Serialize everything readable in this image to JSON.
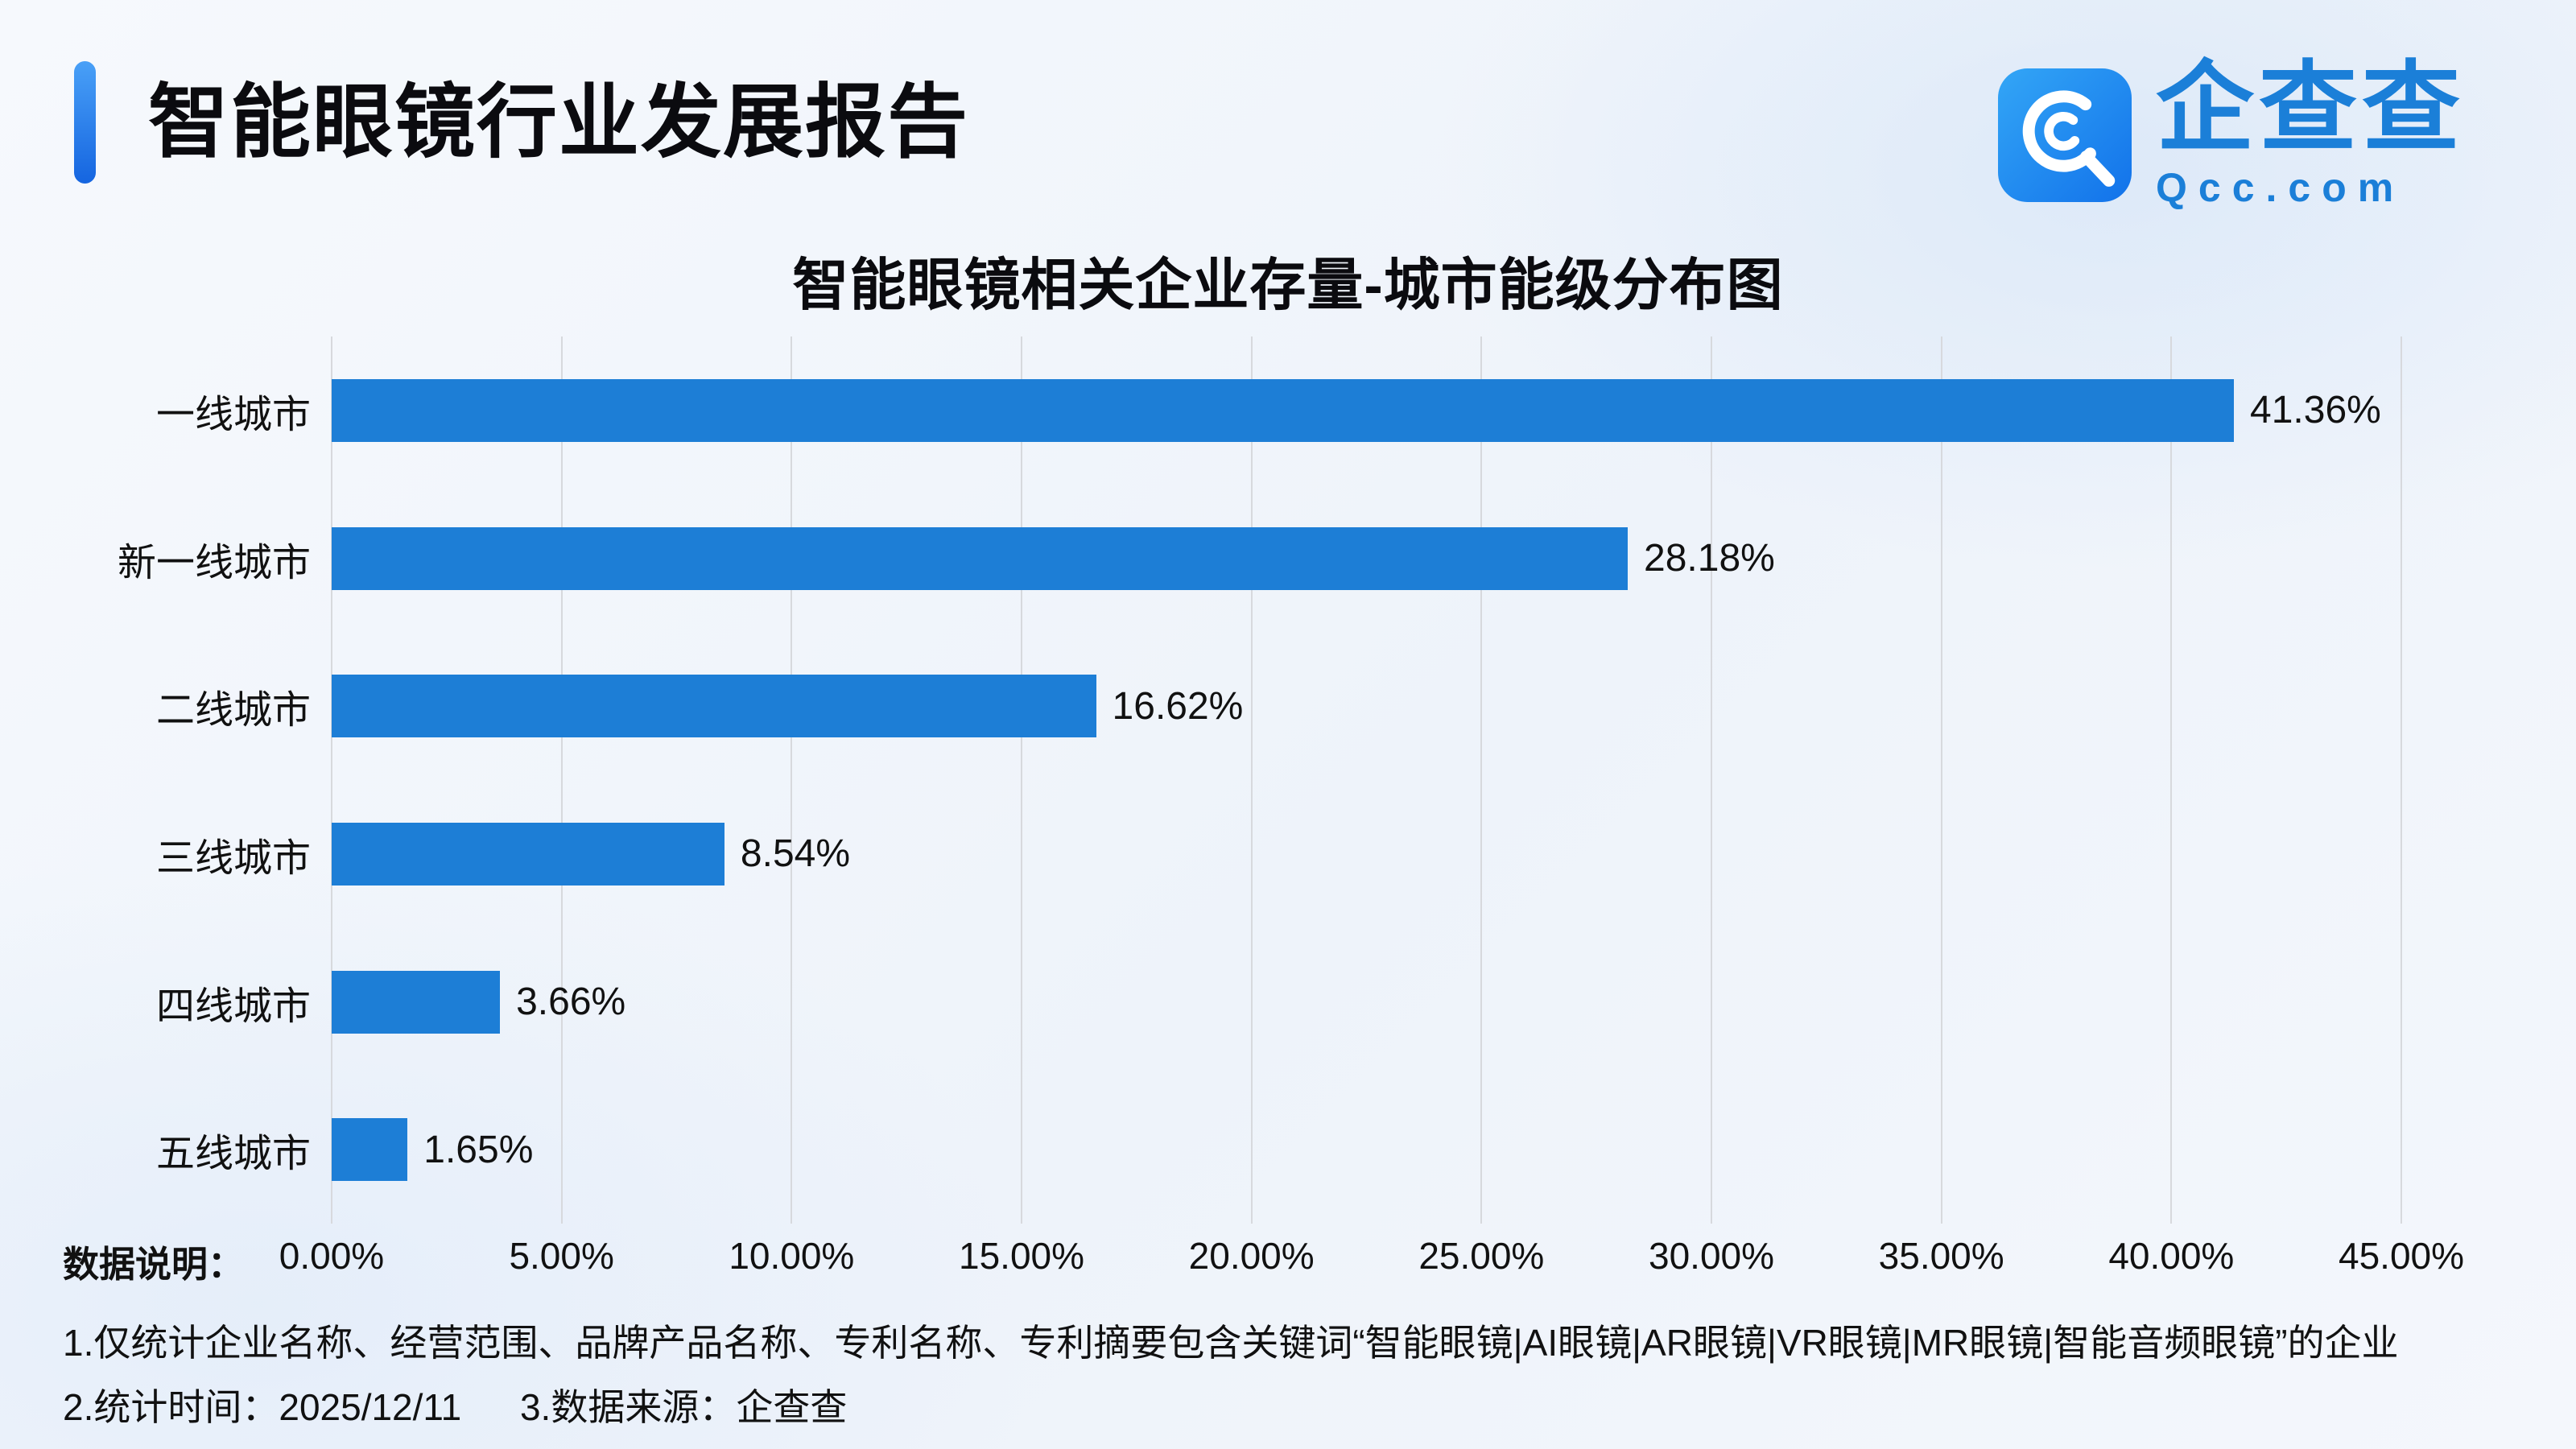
{
  "header": {
    "report_title": "智能眼镜行业发展报告",
    "logo": {
      "brand_name": "企查查",
      "brand_domain": "Qcc.com"
    }
  },
  "chart_data": {
    "type": "bar",
    "orientation": "horizontal",
    "title": "智能眼镜相关企业存量-城市能级分布图",
    "categories": [
      "一线城市",
      "新一线城市",
      "二线城市",
      "三线城市",
      "四线城市",
      "五线城市"
    ],
    "values": [
      41.36,
      28.18,
      16.62,
      8.54,
      3.66,
      1.65
    ],
    "value_labels": [
      "41.36%",
      "28.18%",
      "16.62%",
      "8.54%",
      "3.66%",
      "1.65%"
    ],
    "x_ticks": [
      "0.00%",
      "5.00%",
      "10.00%",
      "15.00%",
      "20.00%",
      "25.00%",
      "30.00%",
      "35.00%",
      "40.00%",
      "45.00%"
    ],
    "xlim": [
      0,
      45
    ],
    "bar_color": "#1d7ed6",
    "grid": true,
    "legend": false
  },
  "footer": {
    "label": "数据说明：",
    "note1": "1.仅统计企业名称、经营范围、品牌产品名称、专利名称、专利摘要包含关键词“智能眼镜|AI眼镜|AR眼镜|VR眼镜|MR眼镜|智能音频眼镜”的企业",
    "note2_time": "2.统计时间：2025/12/11",
    "note2_source": "3.数据来源：企查查"
  }
}
